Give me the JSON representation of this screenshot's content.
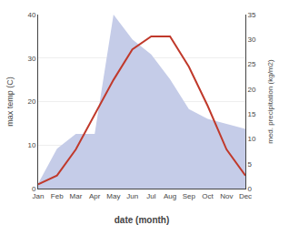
{
  "chart_data": {
    "type": "line",
    "categories": [
      "Jan",
      "Feb",
      "Mar",
      "Apr",
      "May",
      "Jun",
      "Jul",
      "Aug",
      "Sep",
      "Oct",
      "Nov",
      "Dec"
    ],
    "xlabel": "date (month)",
    "ylabel": "max temp (C)",
    "y2label": "med. precipitation (kg/m2)",
    "series": [
      {
        "type": "area",
        "axis": "y2",
        "color": "#c5cce8",
        "values": [
          1,
          8,
          11,
          11,
          35,
          30,
          27,
          22,
          16,
          14,
          13,
          12
        ]
      },
      {
        "type": "line",
        "color": "#c0392b",
        "values": [
          1,
          3,
          9,
          17,
          25,
          32,
          35,
          35,
          28,
          19,
          9,
          3
        ]
      }
    ],
    "ylim": [
      0,
      40
    ],
    "yticks": [
      0,
      10,
      20,
      30,
      40
    ],
    "y2lim": [
      0,
      35
    ],
    "y2ticks": [
      0,
      5,
      10,
      15,
      20,
      25,
      30,
      35
    ],
    "grid": true
  }
}
